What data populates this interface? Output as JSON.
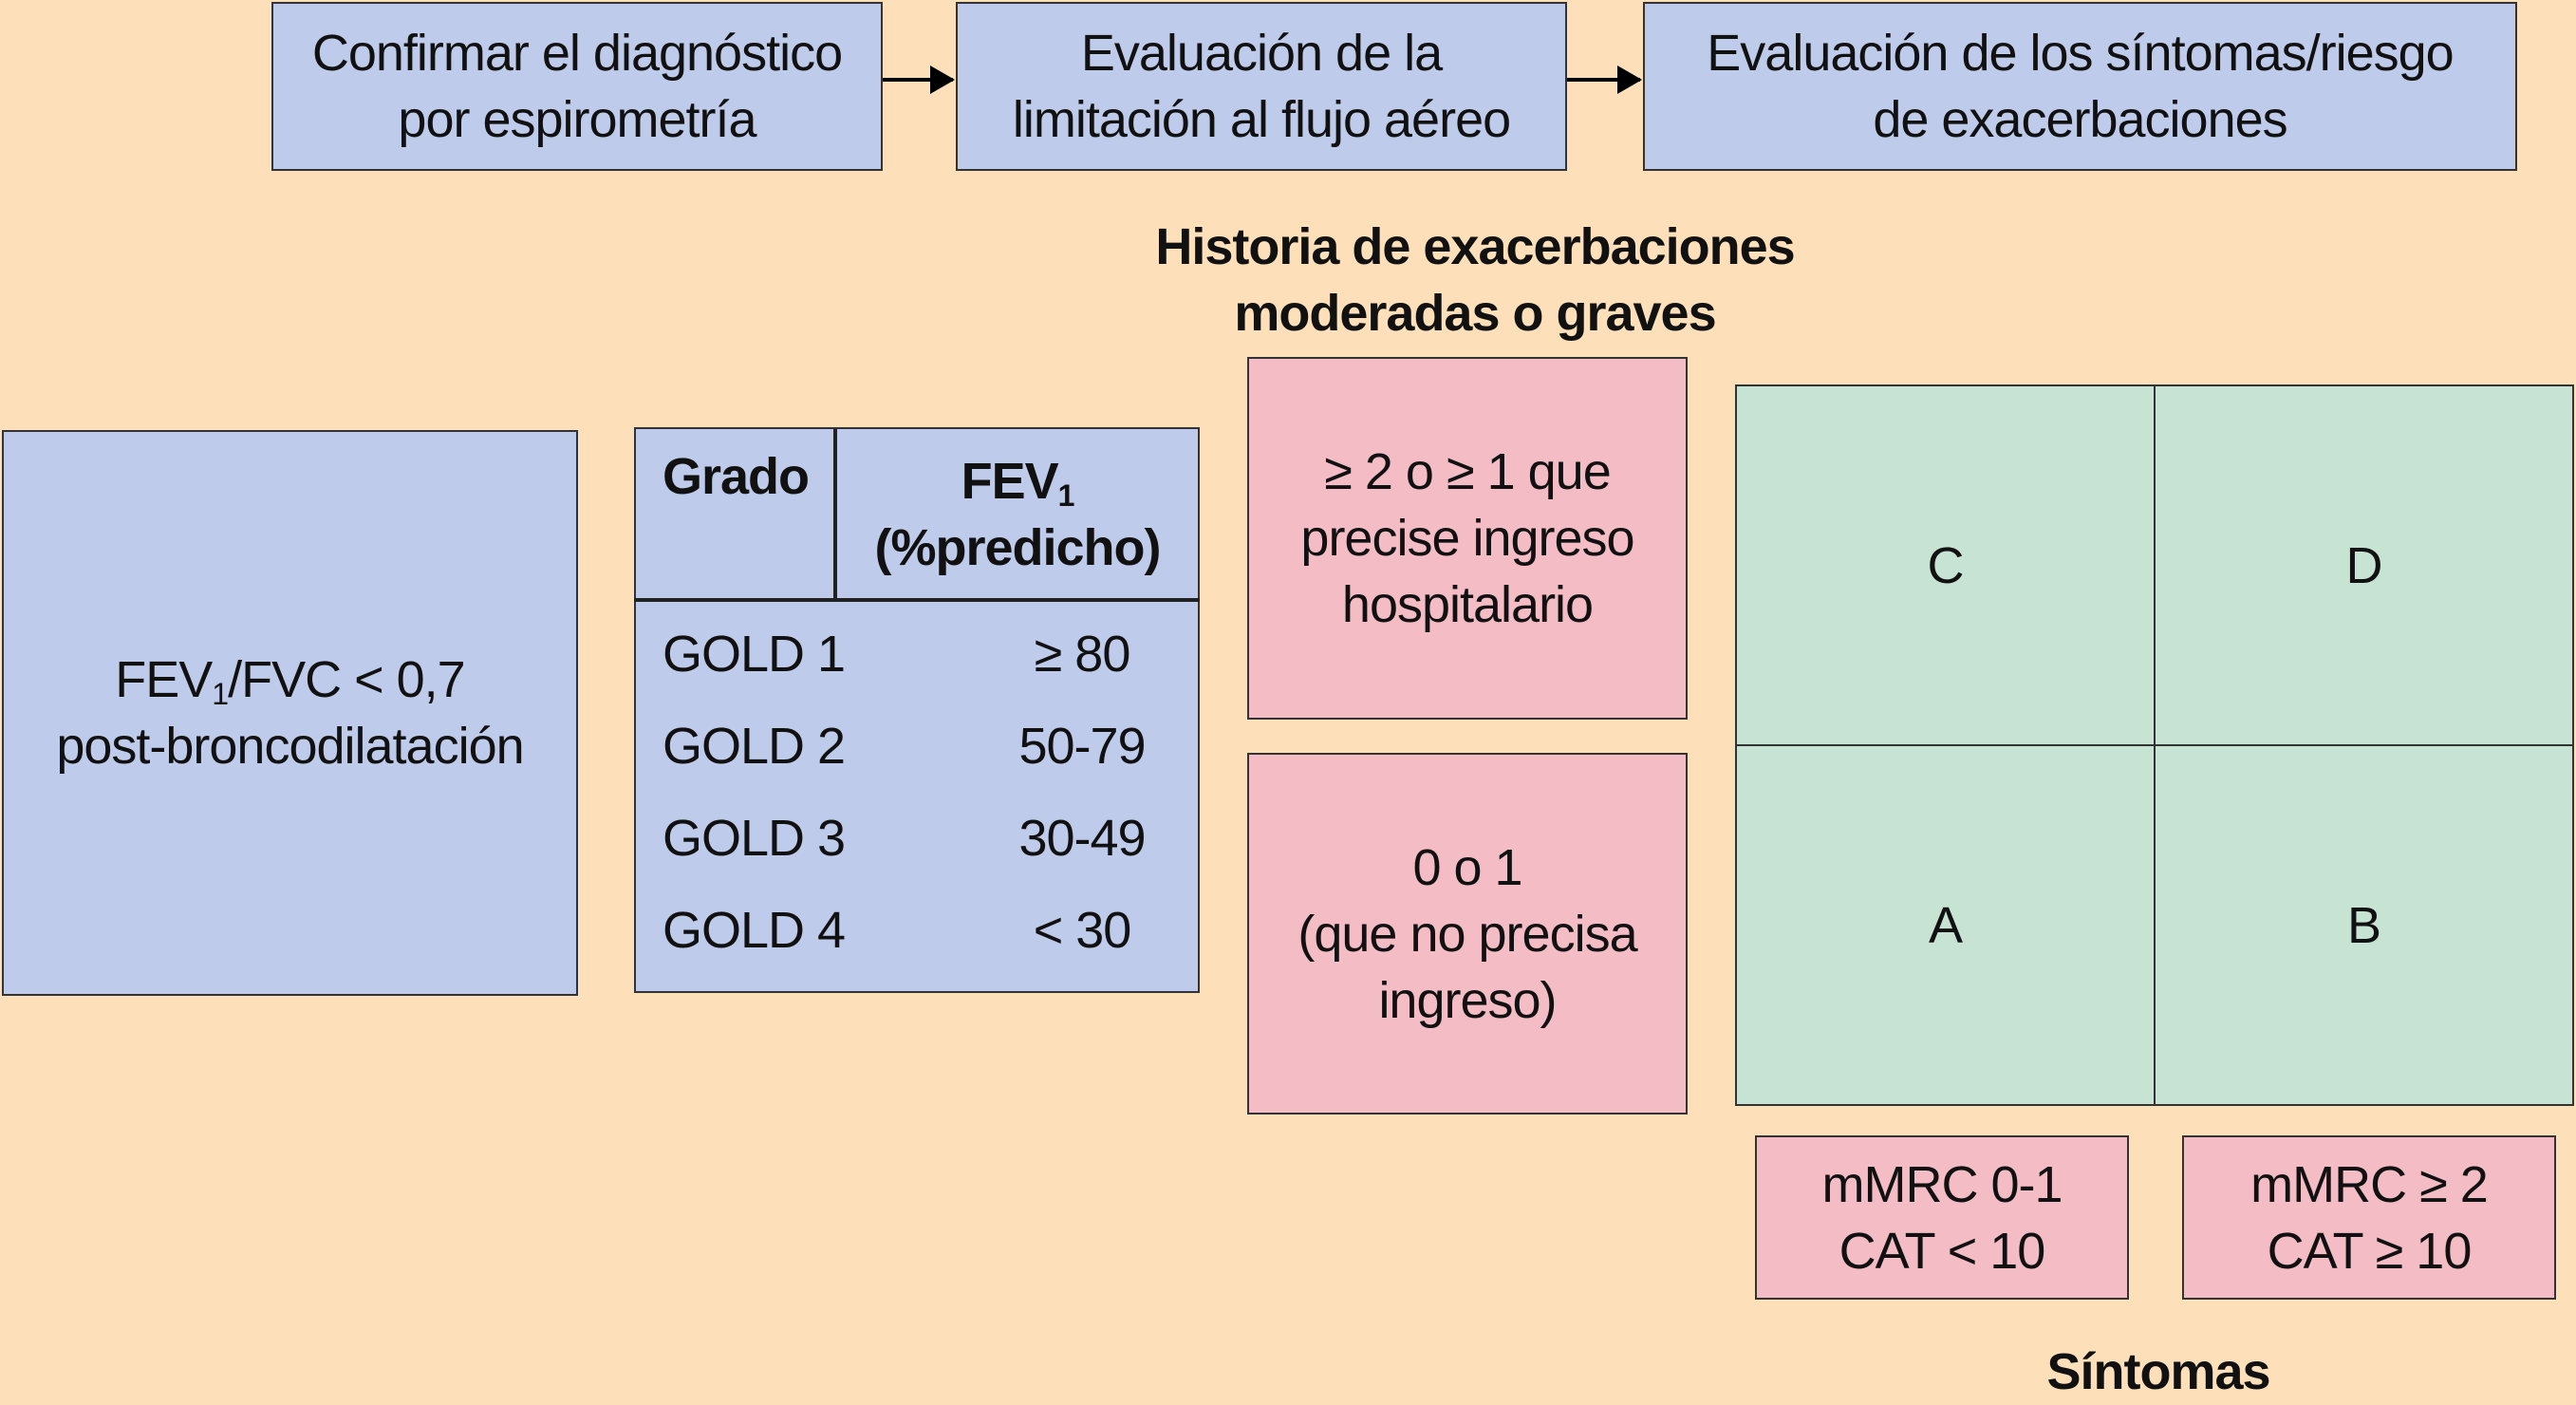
{
  "colors": {
    "background": "#fddfba",
    "blue": "#bfcbea",
    "pink": "#f4bcc4",
    "green": "#c6e3d4"
  },
  "steps": [
    {
      "line1": "Confirmar el diagnóstico",
      "line2": "por espirometría"
    },
    {
      "line1": "Evaluación de la",
      "line2": "limitación al flujo aéreo"
    },
    {
      "line1": "Evaluación de los síntomas/riesgo",
      "line2": "de exacerbaciones"
    }
  ],
  "spirometry": {
    "pre": "FEV",
    "sub": "1",
    "post": "/FVC < 0,7",
    "line2": "post-broncodilatación"
  },
  "gold_table": {
    "header_grade": "Grado",
    "header_fev": "FEV",
    "header_fev_sub": "1",
    "header_fev_line2": "(%predicho)",
    "rows": [
      {
        "grade": "GOLD 1",
        "fev": "≥ 80"
      },
      {
        "grade": "GOLD 2",
        "fev": "50-79"
      },
      {
        "grade": "GOLD 3",
        "fev": "30-49"
      },
      {
        "grade": "GOLD 4",
        "fev": "< 30"
      }
    ]
  },
  "exacerbations": {
    "title_line1": "Historia de exacerbaciones",
    "title_line2": "moderadas o graves",
    "high": {
      "line1": "≥ 2 o ≥ 1 que",
      "line2": "precise ingreso",
      "line3": "hospitalario"
    },
    "low": {
      "line1": "0 o 1",
      "line2": "(que no precisa",
      "line3": "ingreso)"
    }
  },
  "groups": {
    "top_left": "C",
    "top_right": "D",
    "bottom_left": "A",
    "bottom_right": "B"
  },
  "symptoms": {
    "low": {
      "line1": "mMRC 0-1",
      "line2": "CAT < 10"
    },
    "high": {
      "line1": "mMRC ≥ 2",
      "line2": "CAT ≥ 10"
    },
    "label": "Síntomas"
  }
}
